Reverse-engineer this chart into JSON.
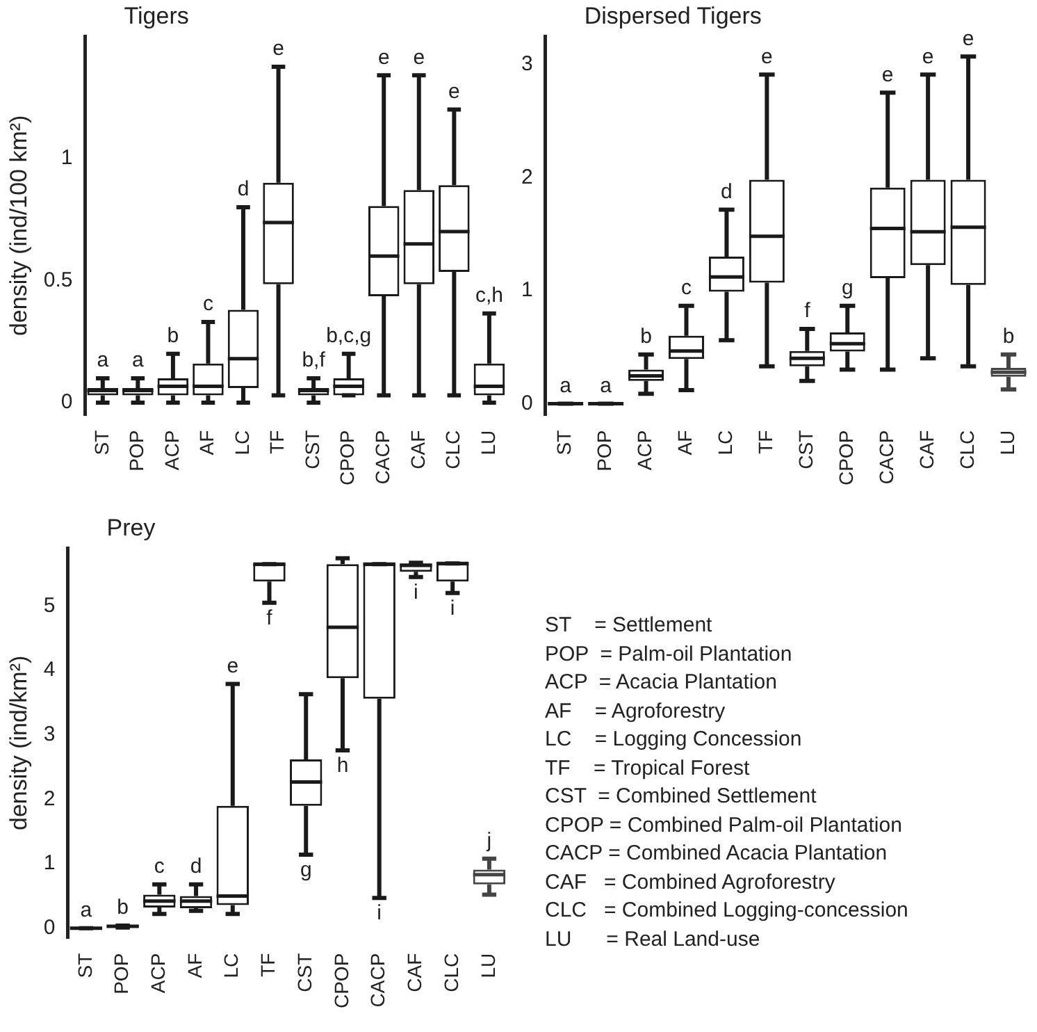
{
  "chart_data": [
    {
      "type": "box",
      "title": "Tigers",
      "ylabel": "density (ind/100 km²)",
      "categories": [
        "ST",
        "POP",
        "ACP",
        "AF",
        "LC",
        "TF",
        "CST",
        "CPOP",
        "CACP",
        "CAF",
        "CLC",
        "LU"
      ],
      "ylim": [
        -0.05,
        1.5
      ],
      "yticks": [
        0,
        0.5,
        1
      ],
      "grid": false,
      "colors": [
        "#1a1a1a",
        "#1a1a1a",
        "#1a1a1a",
        "#1a1a1a",
        "#1a1a1a",
        "#1a1a1a",
        "#1a1a1a",
        "#1a1a1a",
        "#1a1a1a",
        "#1a1a1a",
        "#1a1a1a",
        "#1a1a1a"
      ],
      "boxes": [
        {
          "low": 0,
          "q1": 0.03,
          "median": 0.05,
          "q3": 0.06,
          "high": 0.1
        },
        {
          "low": 0,
          "q1": 0.03,
          "median": 0.05,
          "q3": 0.06,
          "high": 0.1
        },
        {
          "low": 0,
          "q1": 0.03,
          "median": 0.067,
          "q3": 0.1,
          "high": 0.2
        },
        {
          "low": 0,
          "q1": 0.03,
          "median": 0.067,
          "q3": 0.16,
          "high": 0.33
        },
        {
          "low": 0,
          "q1": 0.06,
          "median": 0.18,
          "q3": 0.38,
          "high": 0.8
        },
        {
          "low": 0.03,
          "q1": 0.485,
          "median": 0.737,
          "q3": 0.9,
          "high": 1.375
        },
        {
          "low": 0,
          "q1": 0.03,
          "median": 0.05,
          "q3": 0.06,
          "high": 0.1
        },
        {
          "low": 0.03,
          "q1": 0.03,
          "median": 0.067,
          "q3": 0.1,
          "high": 0.2
        },
        {
          "low": 0.03,
          "q1": 0.436,
          "median": 0.6,
          "q3": 0.805,
          "high": 1.34
        },
        {
          "low": 0.03,
          "q1": 0.485,
          "median": 0.65,
          "q3": 0.87,
          "high": 1.34
        },
        {
          "low": 0.03,
          "q1": 0.535,
          "median": 0.7,
          "q3": 0.89,
          "high": 1.2
        },
        {
          "low": 0,
          "q1": 0.03,
          "median": 0.067,
          "q3": 0.16,
          "high": 0.365
        }
      ],
      "annotations": [
        {
          "text": "a",
          "x": "ST",
          "y": 0.1
        },
        {
          "text": "a",
          "x": "POP",
          "y": 0.1
        },
        {
          "text": "b",
          "x": "ACP",
          "y": 0.2
        },
        {
          "text": "c",
          "x": "AF",
          "y": 0.33
        },
        {
          "text": "d",
          "x": "LC",
          "y": 0.8
        },
        {
          "text": "e",
          "x": "TF",
          "y": 1.375
        },
        {
          "text": "b,f",
          "x": "CST",
          "y": 0.1
        },
        {
          "text": "b,c,g",
          "x": "CPOP",
          "y": 0.2
        },
        {
          "text": "e",
          "x": "CACP",
          "y": 1.34
        },
        {
          "text": "e",
          "x": "CAF",
          "y": 1.34
        },
        {
          "text": "e",
          "x": "CLC",
          "y": 1.2
        },
        {
          "text": "c,h",
          "x": "LU",
          "y": 0.365
        }
      ]
    },
    {
      "type": "box",
      "title": "Dispersed Tigers",
      "categories": [
        "ST",
        "POP",
        "ACP",
        "AF",
        "LC",
        "TF",
        "CST",
        "CPOP",
        "CACP",
        "CAF",
        "CLC",
        "LU"
      ],
      "ylim": [
        -0.1,
        3.25
      ],
      "yticks": [
        0,
        1,
        2,
        3
      ],
      "grid": false,
      "colors": [
        "#1a1a1a",
        "#1a1a1a",
        "#1a1a1a",
        "#1a1a1a",
        "#1a1a1a",
        "#1a1a1a",
        "#1a1a1a",
        "#1a1a1a",
        "#1a1a1a",
        "#1a1a1a",
        "#1a1a1a",
        "#444444"
      ],
      "boxes": [
        {
          "low": 0,
          "q1": 0,
          "median": 0,
          "q3": 0,
          "high": 0
        },
        {
          "low": 0,
          "q1": 0,
          "median": 0,
          "q3": 0,
          "high": 0
        },
        {
          "low": 0.087,
          "q1": 0.2,
          "median": 0.245,
          "q3": 0.3,
          "high": 0.435
        },
        {
          "low": 0.12,
          "q1": 0.395,
          "median": 0.466,
          "q3": 0.6,
          "high": 0.865
        },
        {
          "low": 0.56,
          "q1": 0.99,
          "median": 1.12,
          "q3": 1.3,
          "high": 1.715
        },
        {
          "low": 0.33,
          "q1": 1.07,
          "median": 1.48,
          "q3": 1.98,
          "high": 2.91
        },
        {
          "low": 0.2,
          "q1": 0.33,
          "median": 0.4,
          "q3": 0.466,
          "high": 0.66
        },
        {
          "low": 0.3,
          "q1": 0.46,
          "median": 0.53,
          "q3": 0.63,
          "high": 0.865
        },
        {
          "low": 0.3,
          "q1": 1.11,
          "median": 1.55,
          "q3": 1.91,
          "high": 2.75
        },
        {
          "low": 0.4,
          "q1": 1.225,
          "median": 1.52,
          "q3": 1.98,
          "high": 2.91
        },
        {
          "low": 0.33,
          "q1": 1.05,
          "median": 1.56,
          "q3": 1.98,
          "high": 3.07
        },
        {
          "low": 0.126,
          "q1": 0.237,
          "median": 0.277,
          "q3": 0.316,
          "high": 0.435
        }
      ],
      "annotations": [
        {
          "text": "a",
          "x": "ST",
          "y": 0
        },
        {
          "text": "a",
          "x": "POP",
          "y": 0
        },
        {
          "text": "b",
          "x": "ACP",
          "y": 0.435
        },
        {
          "text": "c",
          "x": "AF",
          "y": 0.865
        },
        {
          "text": "d",
          "x": "LC",
          "y": 1.715
        },
        {
          "text": "e",
          "x": "TF",
          "y": 2.91
        },
        {
          "text": "f",
          "x": "CST",
          "y": 0.66
        },
        {
          "text": "g",
          "x": "CPOP",
          "y": 0.865
        },
        {
          "text": "e",
          "x": "CACP",
          "y": 2.75
        },
        {
          "text": "e",
          "x": "CAF",
          "y": 2.91
        },
        {
          "text": "e",
          "x": "CLC",
          "y": 3.07
        },
        {
          "text": "b",
          "x": "LU",
          "y": 0.435
        }
      ]
    },
    {
      "type": "box",
      "title": "Prey",
      "ylabel": "density (ind/km²)",
      "categories": [
        "ST",
        "POP",
        "ACP",
        "AF",
        "LC",
        "TF",
        "CST",
        "CPOP",
        "CACP",
        "CAF",
        "CLC",
        "LU"
      ],
      "ylim": [
        -0.15,
        5.9
      ],
      "yticks": [
        0,
        1,
        2,
        3,
        4,
        5
      ],
      "grid": false,
      "colors": [
        "#1a1a1a",
        "#1a1a1a",
        "#1a1a1a",
        "#1a1a1a",
        "#1a1a1a",
        "#1a1a1a",
        "#1a1a1a",
        "#1a1a1a",
        "#1a1a1a",
        "#1a1a1a",
        "#1a1a1a",
        "#444444"
      ],
      "boxes": [
        {
          "low": 0,
          "q1": 0,
          "median": 0,
          "q3": 0,
          "high": 0
        },
        {
          "low": 0.01,
          "q1": 0.02,
          "median": 0.03,
          "q3": 0.03,
          "high": 0.04
        },
        {
          "low": 0.22,
          "q1": 0.32,
          "median": 0.42,
          "q3": 0.52,
          "high": 0.68
        },
        {
          "low": 0.27,
          "q1": 0.31,
          "median": 0.42,
          "q3": 0.5,
          "high": 0.68
        },
        {
          "low": 0.22,
          "q1": 0.36,
          "median": 0.5,
          "q3": 1.9,
          "high": 3.79
        },
        {
          "low": 5.05,
          "q1": 5.38,
          "median": 5.65,
          "q3": 5.65,
          "high": 5.65
        },
        {
          "low": 1.14,
          "q1": 1.9,
          "median": 2.27,
          "q3": 2.62,
          "high": 3.63
        },
        {
          "low": 2.76,
          "q1": 3.88,
          "median": 4.67,
          "q3": 5.65,
          "high": 5.74
        },
        {
          "low": 0.47,
          "q1": 3.56,
          "median": 5.65,
          "q3": 5.65,
          "high": 5.65
        },
        {
          "low": 5.45,
          "q1": 5.53,
          "median": 5.63,
          "q3": 5.66,
          "high": 5.67
        },
        {
          "low": 5.2,
          "q1": 5.38,
          "median": 5.66,
          "q3": 5.66,
          "high": 5.66
        },
        {
          "low": 0.52,
          "q1": 0.68,
          "median": 0.83,
          "q3": 0.91,
          "high": 1.08
        }
      ],
      "annotations": [
        {
          "text": "a",
          "x": "ST",
          "y": 0
        },
        {
          "text": "b",
          "x": "POP",
          "y": 0.04
        },
        {
          "text": "c",
          "x": "ACP",
          "y": 0.68
        },
        {
          "text": "d",
          "x": "AF",
          "y": 0.68
        },
        {
          "text": "e",
          "x": "LC",
          "y": 3.79
        },
        {
          "text": "f",
          "x": "TF",
          "y": 5.05
        },
        {
          "text": "g",
          "x": "CST",
          "y": 1.14
        },
        {
          "text": "h",
          "x": "CPOP",
          "y": 2.76
        },
        {
          "text": "i",
          "x": "CACP",
          "y": 0.47
        },
        {
          "text": "i",
          "x": "CAF",
          "y": 5.45
        },
        {
          "text": "i",
          "x": "CLC",
          "y": 5.2
        },
        {
          "text": "j",
          "x": "LU",
          "y": 1.08
        }
      ]
    },
    {
      "type": "other",
      "annotations": [
        "ST    = Settlement",
        "POP  = Palm-oil Plantation",
        "ACP  = Acacia Plantation",
        "AF    = Agroforestry",
        "LC    = Logging Concession",
        "TF    = Tropical Forest",
        "CST  = Combined Settlement",
        "CPOP = Combined Palm-oil Plantation",
        "CACP = Combined Acacia Plantation",
        "CAF   = Combined Agroforestry",
        "CLC   = Combined Logging-concession",
        "LU      = Real Land-use"
      ]
    }
  ]
}
